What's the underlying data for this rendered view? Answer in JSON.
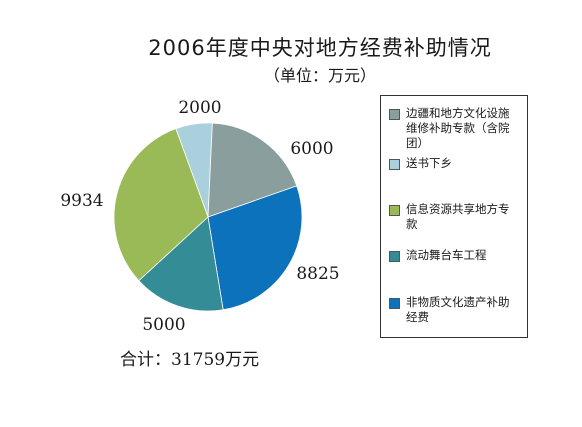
{
  "title": "2006年度中央对地方经费补助情况",
  "subtitle": "（单位：万元）",
  "total_text": "合计：31759万元",
  "chart_data": {
    "type": "pie",
    "title": "2006年度中央对地方经费补助情况",
    "unit": "万元",
    "total": 31759,
    "slices": [
      {
        "name": "送书下乡",
        "value": 2000,
        "label": "2000",
        "color": "#a9d0dc"
      },
      {
        "name": "边疆和地方文化设施维修补助专款（含院团）",
        "value": 6000,
        "label": "6000",
        "color": "#8a9e9e"
      },
      {
        "name": "非物质文化遗产补助经费",
        "value": 8825,
        "label": "8825",
        "color": "#0b72bb"
      },
      {
        "name": "流动舞台车工程",
        "value": 5000,
        "label": "5000",
        "color": "#338c96"
      },
      {
        "name": "信息资源共享地方专款",
        "value": 9934,
        "label": "9934",
        "color": "#9aba58"
      }
    ],
    "legend": [
      {
        "text": "边疆和地方文化设施维修补助专款（含院团）",
        "color": "#8a9e9e"
      },
      {
        "text": "送书下乡",
        "color": "#a9d0dc"
      },
      {
        "text": "信息资源共享地方专款",
        "color": "#9aba58"
      },
      {
        "text": "流动舞台车工程",
        "color": "#338c96"
      },
      {
        "text": "非物质文化遗产补助经费",
        "color": "#0b72bb"
      }
    ],
    "legend_position": "right"
  }
}
